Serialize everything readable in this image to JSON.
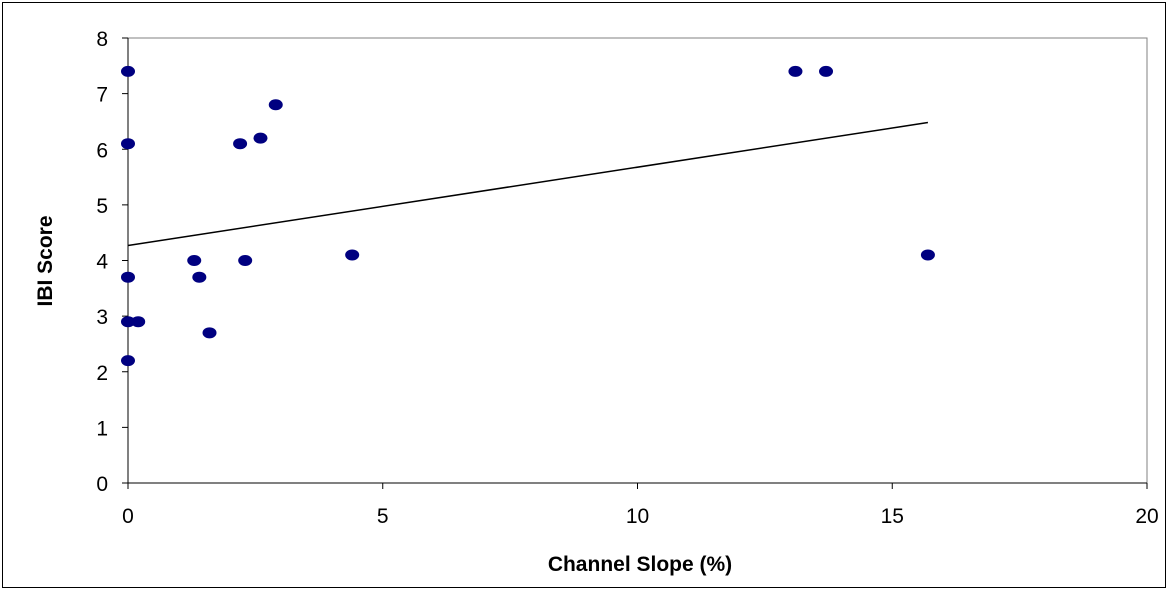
{
  "chart_data": {
    "type": "scatter",
    "title": "",
    "xlabel": "Channel Slope (%)",
    "ylabel": "IBI Score",
    "xlim": [
      0,
      20
    ],
    "ylim": [
      0,
      8
    ],
    "x_ticks": [
      0,
      5,
      10,
      15,
      20
    ],
    "y_ticks": [
      0,
      1,
      2,
      3,
      4,
      5,
      6,
      7,
      8
    ],
    "grid": false,
    "legend": "none",
    "marker_color": "#000080",
    "series": [
      {
        "points": [
          {
            "x": 0.0,
            "y": 7.4
          },
          {
            "x": 0.0,
            "y": 6.1
          },
          {
            "x": 0.0,
            "y": 3.7
          },
          {
            "x": 0.0,
            "y": 2.9
          },
          {
            "x": 0.0,
            "y": 2.2
          },
          {
            "x": 0.2,
            "y": 2.9
          },
          {
            "x": 1.3,
            "y": 4.0
          },
          {
            "x": 1.4,
            "y": 3.7
          },
          {
            "x": 1.6,
            "y": 2.7
          },
          {
            "x": 2.2,
            "y": 6.1
          },
          {
            "x": 2.3,
            "y": 4.0
          },
          {
            "x": 2.6,
            "y": 6.2
          },
          {
            "x": 2.9,
            "y": 6.8
          },
          {
            "x": 4.4,
            "y": 4.1
          },
          {
            "x": 13.1,
            "y": 7.4
          },
          {
            "x": 13.7,
            "y": 7.4
          },
          {
            "x": 15.7,
            "y": 4.1
          }
        ]
      }
    ],
    "trendline": {
      "type": "linear",
      "x_start": 0,
      "y_start": 4.27,
      "x_end": 15.7,
      "y_end": 6.48,
      "color": "#000000"
    }
  }
}
